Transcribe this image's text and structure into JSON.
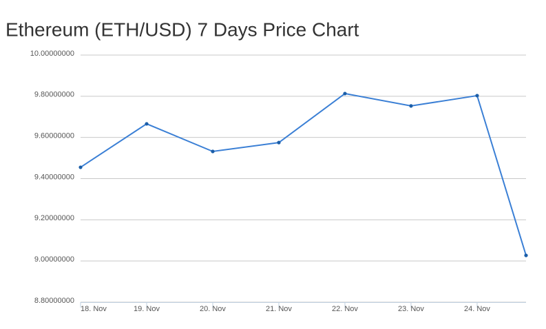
{
  "chart_data": {
    "type": "line",
    "title": "Ethereum (ETH/USD) 7 Days Price Chart",
    "x": [
      18,
      19,
      20,
      21,
      22,
      23,
      24,
      24.74
    ],
    "series": [
      {
        "color": "#3a7fd5",
        "values": [
          9.455,
          9.666,
          9.532,
          9.575,
          9.813,
          9.753,
          9.803,
          9.027
        ]
      }
    ],
    "xlim": [
      18,
      24.74
    ],
    "xticks": [
      {
        "value": 18,
        "label": "18. Nov"
      },
      {
        "value": 19,
        "label": "19. Nov"
      },
      {
        "value": 20,
        "label": "20. Nov"
      },
      {
        "value": 21,
        "label": "21. Nov"
      },
      {
        "value": 22,
        "label": "22. Nov"
      },
      {
        "value": 23,
        "label": "23. Nov"
      },
      {
        "value": 24,
        "label": "24. Nov"
      }
    ],
    "ylim": [
      8.8,
      10
    ],
    "yticks": [
      {
        "value": 8.8,
        "label": "8.80000000"
      },
      {
        "value": 9,
        "label": "9.00000000"
      },
      {
        "value": 9.2,
        "label": "9.20000000"
      },
      {
        "value": 9.4,
        "label": "9.40000000"
      },
      {
        "value": 9.6,
        "label": "9.60000000"
      },
      {
        "value": 9.8,
        "label": "9.80000000"
      },
      {
        "value": 10,
        "label": "10.00000000"
      }
    ],
    "grid": true
  }
}
